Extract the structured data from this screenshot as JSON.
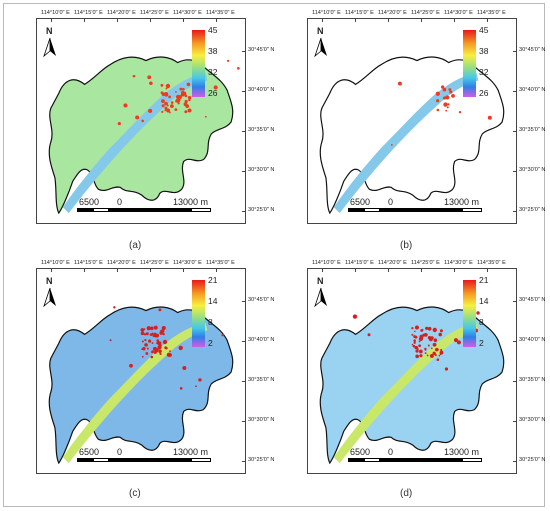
{
  "lon_ticks": [
    "114°10'0\" E",
    "114°15'0\" E",
    "114°20'0\" E",
    "114°25'0\" E",
    "114°30'0\" E",
    "114°35'0\" E"
  ],
  "lat_ticks": [
    "30°45'0\" N",
    "30°40'0\" N",
    "30°35'0\" N",
    "30°30'0\" N",
    "30°25'0\" N"
  ],
  "north_label": "N",
  "scale": {
    "left": "6500",
    "mid": "0",
    "right": "13000 m"
  },
  "panels": [
    {
      "caption": "(a)",
      "legend": [
        "45",
        "38",
        "32",
        "26"
      ],
      "colors": {
        "base": "#a9e6a0",
        "river": "#84c8ea",
        "hot": "#ee3b20"
      }
    },
    {
      "caption": "(b)",
      "legend": [
        "45",
        "38",
        "32",
        "26"
      ],
      "colors": {
        "base": "#ffffff",
        "river": "#84c8ea",
        "hot": "#ee3b20"
      }
    },
    {
      "caption": "(c)",
      "legend": [
        "21",
        "14",
        "8",
        "2"
      ],
      "colors": {
        "base": "#7db8e8",
        "river": "#c9e86a",
        "hot": "#d81f1f"
      }
    },
    {
      "caption": "(d)",
      "legend": [
        "21",
        "14",
        "8",
        "2"
      ],
      "colors": {
        "base": "#9ad2f2",
        "river": "#c9e86a",
        "hot": "#d81f1f"
      }
    }
  ]
}
